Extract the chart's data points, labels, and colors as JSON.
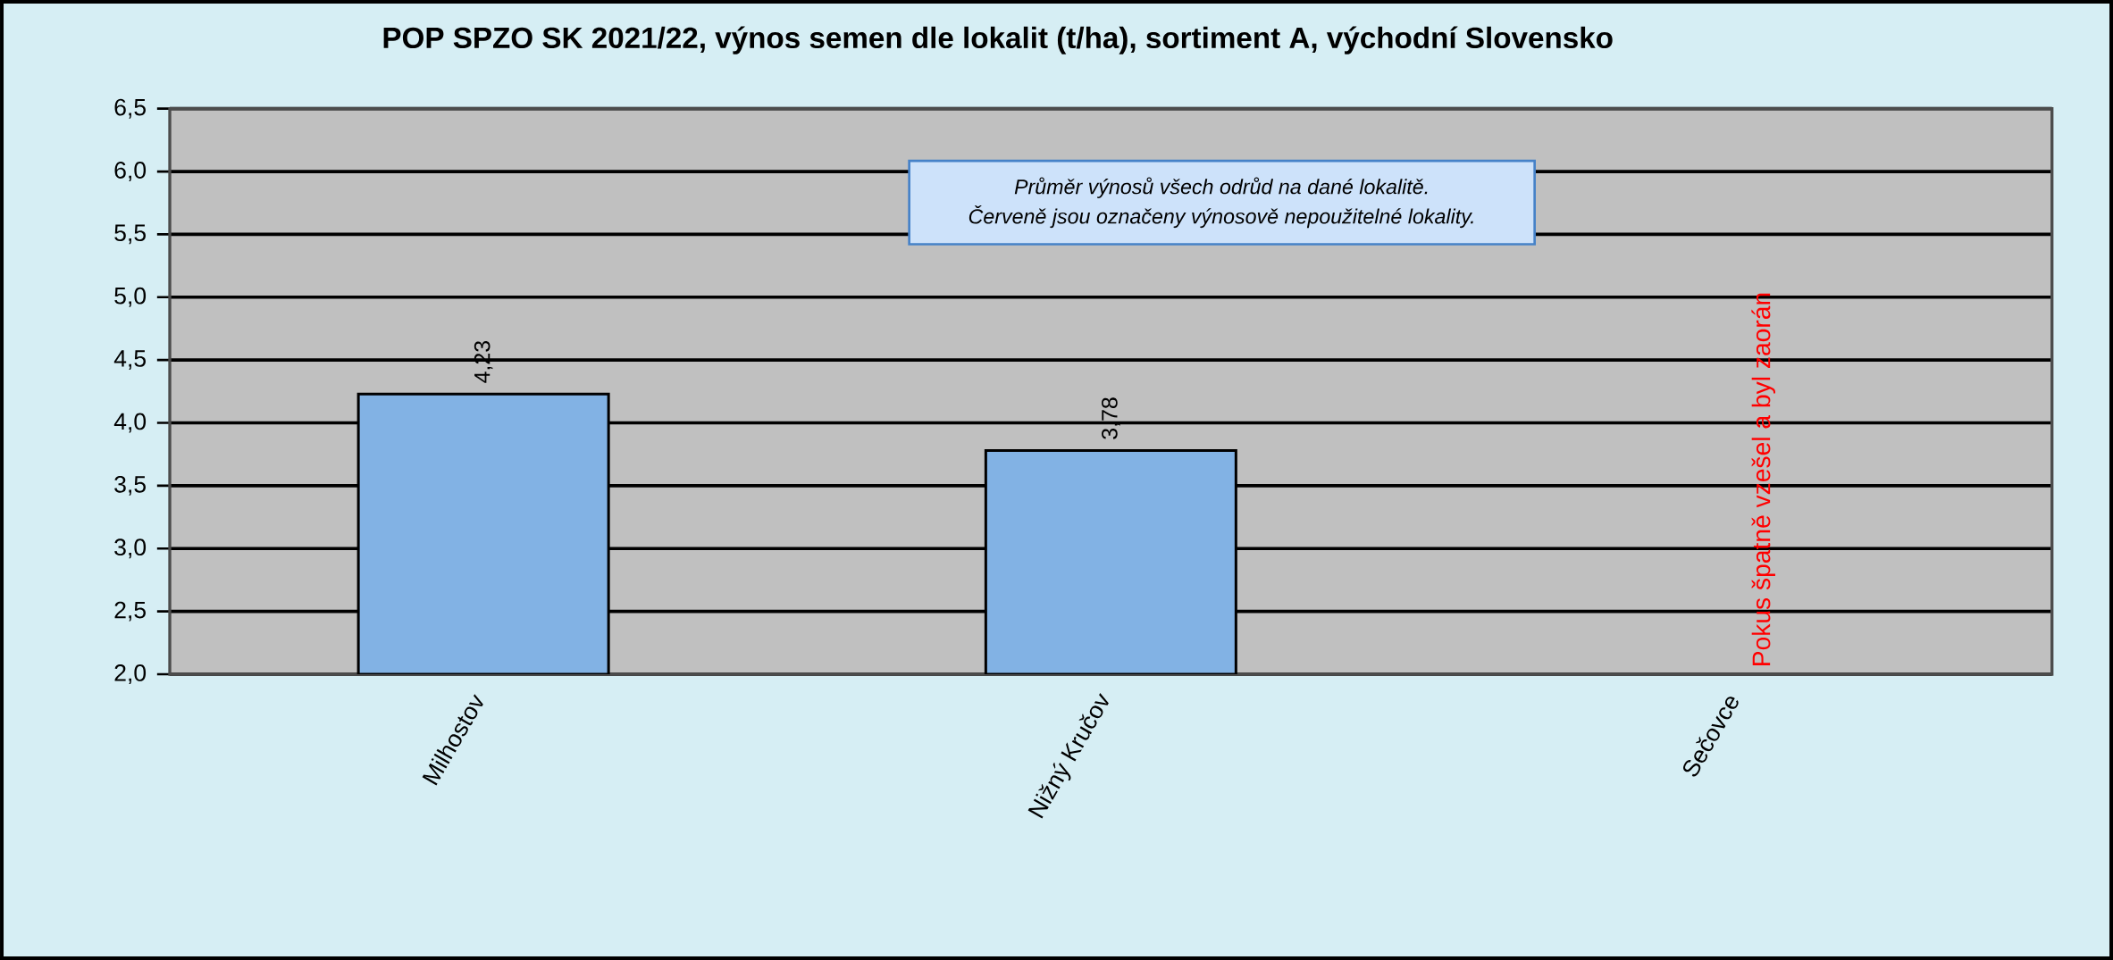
{
  "chart_data": {
    "type": "bar",
    "title": "POP SPZO SK 2021/22, výnos semen dle lokalit (t/ha), sortiment A, východní Slovensko",
    "categories": [
      "Milhostov",
      "Nižný Kručov",
      "Sečovce"
    ],
    "values": [
      4.23,
      3.78,
      null
    ],
    "value_labels": [
      "4,23",
      "3,78",
      null
    ],
    "color": "#82b2e4",
    "ylim": [
      2,
      6.5
    ],
    "yticks": [
      {
        "value": 2,
        "label": "2,0"
      },
      {
        "value": 2.5,
        "label": "2,5"
      },
      {
        "value": 3,
        "label": "3,0"
      },
      {
        "value": 3.5,
        "label": "3,5"
      },
      {
        "value": 4,
        "label": "4,0"
      },
      {
        "value": 4.5,
        "label": "4,5"
      },
      {
        "value": 5,
        "label": "5,0"
      },
      {
        "value": 5.5,
        "label": "5,5"
      },
      {
        "value": 6,
        "label": "6,0"
      },
      {
        "value": 6.5,
        "label": "6,5"
      }
    ],
    "grid": "y",
    "annotations": [
      "Průměr výnosů všech odrůd na dané lokalitě.",
      "Červeně jsou označeny výnosově nepoužitelné lokality.",
      "Pokus špatně vzešel a byl zaorán"
    ]
  }
}
